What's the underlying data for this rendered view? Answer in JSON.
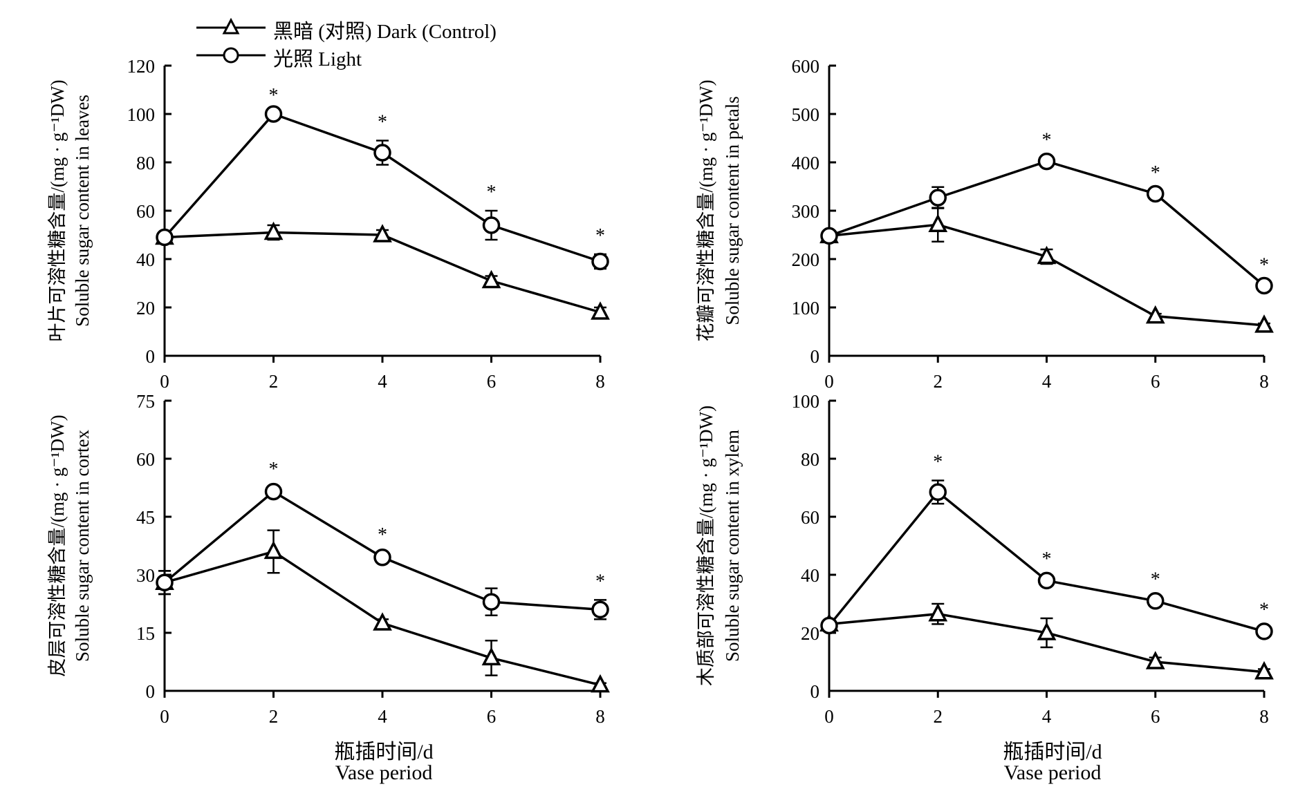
{
  "legend": {
    "dark": "黑暗 (对照) Dark (Control)",
    "light": "光照 Light"
  },
  "x_title": {
    "cn": "瓶插时间/d",
    "en": "Vase period"
  },
  "chart_data": [
    {
      "type": "line",
      "ylabel_cn": "叶片可溶性糖含量/(mg · g⁻¹DW)",
      "ylabel_en": "Soluble sugar content in leaves",
      "x": [
        0,
        2,
        4,
        6,
        8
      ],
      "xlim": [
        0,
        8
      ],
      "ylim": [
        0,
        120
      ],
      "yticks": [
        0,
        20,
        40,
        60,
        80,
        100,
        120
      ],
      "series": [
        {
          "name": "黑暗 (对照) Dark (Control)",
          "marker": "triangle",
          "values": [
            49,
            51,
            50,
            31,
            18
          ],
          "errors": [
            2,
            3,
            2,
            2,
            2
          ]
        },
        {
          "name": "光照 Light",
          "marker": "circle",
          "values": [
            49,
            100,
            84,
            54,
            39
          ],
          "errors": [
            1,
            0,
            5,
            6,
            3
          ]
        }
      ],
      "significance": [
        false,
        true,
        true,
        true,
        true
      ]
    },
    {
      "type": "line",
      "ylabel_cn": "花瓣可溶性糖含量/(mg · g⁻¹DW)",
      "ylabel_en": "Soluble sugar content in petals",
      "x": [
        0,
        2,
        4,
        6,
        8
      ],
      "xlim": [
        0,
        8
      ],
      "ylim": [
        0,
        600
      ],
      "yticks": [
        0,
        100,
        200,
        300,
        400,
        500,
        600
      ],
      "series": [
        {
          "name": "黑暗 (对照) Dark (Control)",
          "marker": "triangle",
          "values": [
            248,
            271,
            205,
            82,
            63
          ],
          "errors": [
            5,
            35,
            15,
            5,
            4
          ]
        },
        {
          "name": "光照 Light",
          "marker": "circle",
          "values": [
            248,
            327,
            402,
            335,
            145
          ],
          "errors": [
            5,
            22,
            6,
            5,
            4
          ]
        }
      ],
      "significance": [
        false,
        false,
        true,
        true,
        true
      ]
    },
    {
      "type": "line",
      "ylabel_cn": "皮层可溶性糖含量/(mg · g⁻¹DW)",
      "ylabel_en": "Soluble sugar content in cortex",
      "x": [
        0,
        2,
        4,
        6,
        8
      ],
      "xlim": [
        0,
        8
      ],
      "ylim": [
        0,
        75
      ],
      "yticks": [
        0,
        15,
        30,
        45,
        60,
        75
      ],
      "series": [
        {
          "name": "黑暗 (对照) Dark (Control)",
          "marker": "triangle",
          "values": [
            28,
            36,
            17.5,
            8.5,
            1.5
          ],
          "errors": [
            3,
            5.5,
            1,
            4.5,
            0.5
          ]
        },
        {
          "name": "光照 Light",
          "marker": "circle",
          "values": [
            28,
            51.5,
            34.5,
            23,
            21
          ],
          "errors": [
            3,
            1,
            1,
            3.5,
            2.5
          ]
        }
      ],
      "significance": [
        false,
        true,
        true,
        false,
        true
      ]
    },
    {
      "type": "line",
      "ylabel_cn": "木质部可溶性糖含量/(mg · g⁻¹DW)",
      "ylabel_en": "Soluble sugar content in xylem",
      "x": [
        0,
        2,
        4,
        6,
        8
      ],
      "xlim": [
        0,
        8
      ],
      "ylim": [
        0,
        100
      ],
      "yticks": [
        0,
        20,
        40,
        60,
        80,
        100
      ],
      "series": [
        {
          "name": "黑暗 (对照) Dark (Control)",
          "marker": "triangle",
          "values": [
            23,
            26.5,
            20,
            10,
            6.5
          ],
          "errors": [
            1,
            3.5,
            5,
            1.5,
            1
          ]
        },
        {
          "name": "光照 Light",
          "marker": "circle",
          "values": [
            22.5,
            68.5,
            38,
            31,
            20.5
          ],
          "errors": [
            1,
            4,
            1,
            1,
            1
          ]
        }
      ],
      "significance": [
        false,
        true,
        true,
        true,
        true
      ]
    }
  ]
}
